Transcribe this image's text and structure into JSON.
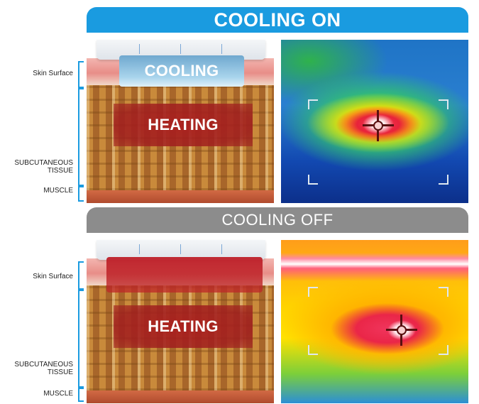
{
  "on_section": {
    "banner": "COOLING ON",
    "labels": {
      "skin_surface": "Skin Surface",
      "subcutaneous": [
        "SUBCUTANEOUS",
        "TISSUE"
      ],
      "muscle": "MUSCLE"
    },
    "zones": {
      "cooling": "COOLING",
      "heating": "HEATING"
    }
  },
  "off_section": {
    "banner": "COOLING OFF",
    "labels": {
      "skin_surface": "Skin Surface",
      "subcutaneous": [
        "SUBCUTANEOUS",
        "TISSUE"
      ],
      "muscle": "MUSCLE"
    },
    "zones": {
      "heating": "HEATING"
    }
  },
  "colors": {
    "on_banner": "#1a9be0",
    "off_banner": "#8c8c8c",
    "bracket": "#1a9be0"
  }
}
